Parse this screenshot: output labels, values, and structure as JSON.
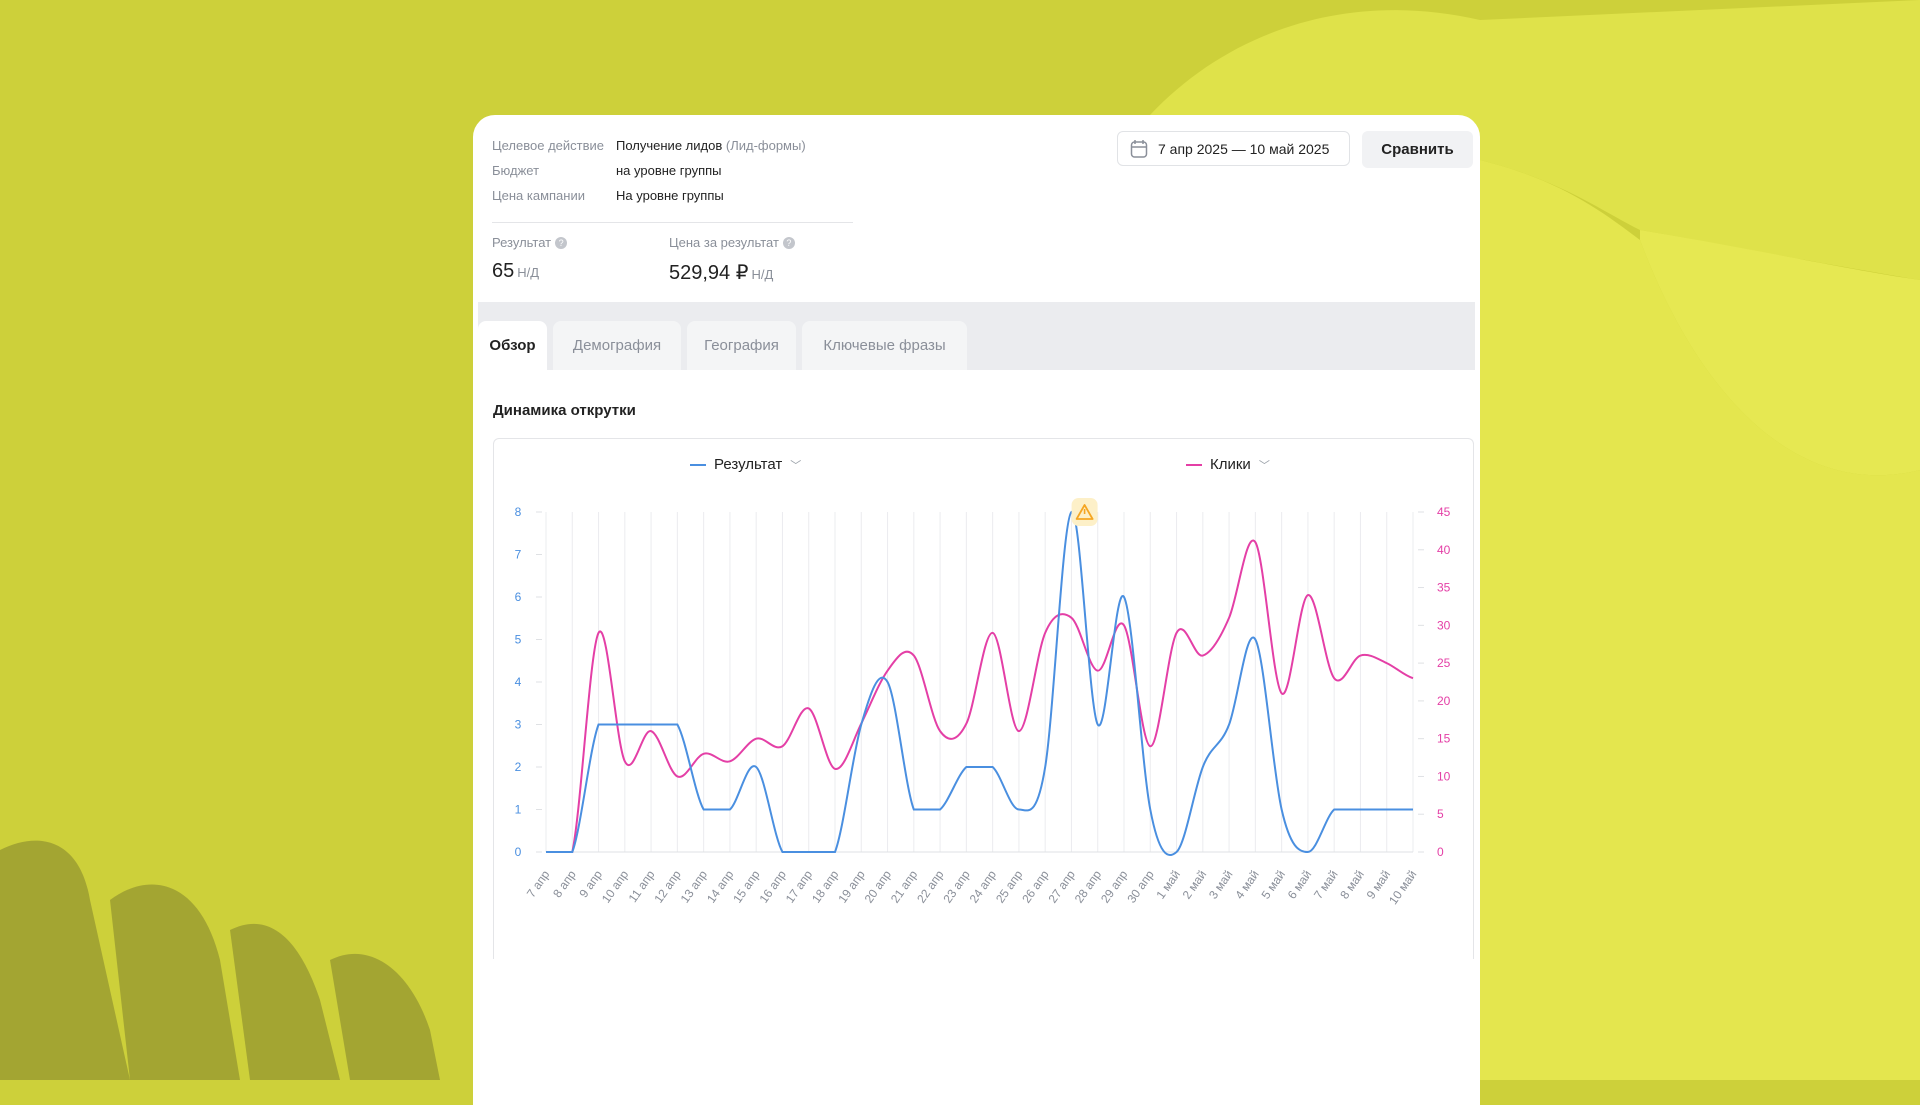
{
  "info": {
    "rows": [
      {
        "label": "Целевое действие",
        "value": "Получение лидов",
        "extra": "(Лид-формы)"
      },
      {
        "label": "Бюджет",
        "value": "на уровне группы",
        "extra": ""
      },
      {
        "label": "Цена кампании",
        "value": "На уровне группы",
        "extra": ""
      }
    ],
    "metrics": [
      {
        "label": "Результат",
        "value": "65",
        "compare": "Н/Д"
      },
      {
        "label": "Цена за результат",
        "value": "529,94 ₽",
        "compare": "Н/Д"
      }
    ]
  },
  "toolbar": {
    "date_range": "7 апр 2025 — 10 май 2025",
    "compare_label": "Сравнить",
    "date_icon": "calendar-icon"
  },
  "tabs": [
    {
      "label": "Обзор",
      "active": true
    },
    {
      "label": "Демография",
      "active": false
    },
    {
      "label": "География",
      "active": false
    },
    {
      "label": "Ключевые фразы",
      "active": false
    }
  ],
  "section_title": "Динамика открутки",
  "colors": {
    "result": "#4a8fe0",
    "clicks": "#e43fa6",
    "warning": "#f5a623"
  },
  "chart_data": {
    "type": "line",
    "legend_placement": "top",
    "grid": true,
    "x": [
      "7 апр",
      "8 апр",
      "9 апр",
      "10 апр",
      "11 апр",
      "12 апр",
      "13 апр",
      "14 апр",
      "15 апр",
      "16 апр",
      "17 апр",
      "18 апр",
      "19 апр",
      "20 апр",
      "21 апр",
      "22 апр",
      "23 апр",
      "24 апр",
      "25 апр",
      "26 апр",
      "27 апр",
      "28 апр",
      "29 апр",
      "30 апр",
      "1 май",
      "2 май",
      "3 май",
      "4 май",
      "5 май",
      "6 май",
      "7 май",
      "8 май",
      "9 май",
      "10 май"
    ],
    "series": [
      {
        "name": "Результат",
        "axis": "left",
        "values": [
          0,
          0,
          3,
          3,
          3,
          3,
          1,
          1,
          2,
          0,
          0,
          0,
          3,
          4,
          1,
          1,
          2,
          2,
          1,
          2,
          8,
          3,
          6,
          1,
          0,
          2,
          3,
          5,
          1,
          0,
          1,
          1,
          1,
          1
        ]
      },
      {
        "name": "Клики",
        "axis": "right",
        "values": [
          0,
          0,
          29,
          12,
          16,
          10,
          13,
          12,
          15,
          14,
          19,
          11,
          17,
          24,
          26,
          16,
          17,
          29,
          16,
          29,
          31,
          24,
          30,
          14,
          29,
          26,
          31,
          41,
          21,
          34,
          23,
          26,
          25,
          23
        ]
      }
    ],
    "y_left": {
      "range": [
        0,
        8
      ],
      "ticks": [
        "0",
        "1",
        "2",
        "3",
        "4",
        "5",
        "6",
        "7",
        "8"
      ]
    },
    "y_right": {
      "range": [
        0,
        45
      ],
      "ticks": [
        "0",
        "5",
        "10",
        "15",
        "20",
        "25",
        "30",
        "35",
        "40",
        "45"
      ]
    },
    "annotation": {
      "type": "warning",
      "between": [
        "27 апр",
        "28 апр"
      ]
    }
  }
}
